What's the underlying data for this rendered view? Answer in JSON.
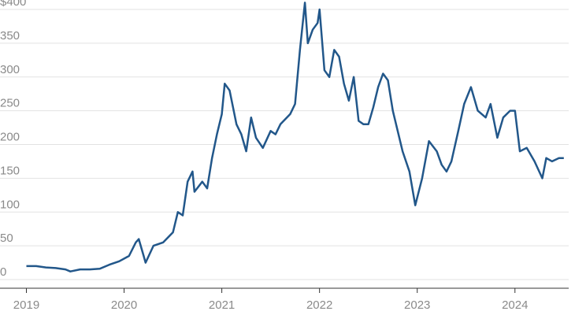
{
  "chart_data": {
    "type": "line",
    "x": [
      2019.0,
      2019.1,
      2019.2,
      2019.3,
      2019.4,
      2019.45,
      2019.55,
      2019.65,
      2019.75,
      2019.85,
      2019.95,
      2020.05,
      2020.12,
      2020.15,
      2020.2,
      2020.22,
      2020.3,
      2020.4,
      2020.5,
      2020.55,
      2020.6,
      2020.65,
      2020.7,
      2020.72,
      2020.8,
      2020.85,
      2020.9,
      2020.95,
      2021.0,
      2021.03,
      2021.08,
      2021.15,
      2021.2,
      2021.25,
      2021.3,
      2021.35,
      2021.42,
      2021.5,
      2021.55,
      2021.6,
      2021.7,
      2021.75,
      2021.8,
      2021.85,
      2021.88,
      2021.93,
      2021.98,
      2022.0,
      2022.05,
      2022.1,
      2022.15,
      2022.2,
      2022.25,
      2022.3,
      2022.35,
      2022.4,
      2022.45,
      2022.5,
      2022.55,
      2022.6,
      2022.65,
      2022.7,
      2022.75,
      2022.8,
      2022.85,
      2022.92,
      2022.98,
      2023.05,
      2023.12,
      2023.2,
      2023.25,
      2023.3,
      2023.35,
      2023.42,
      2023.48,
      2023.55,
      2023.62,
      2023.7,
      2023.75,
      2023.82,
      2023.88,
      2023.95,
      2024.0,
      2024.05,
      2024.12,
      2024.2,
      2024.28,
      2024.32,
      2024.38,
      2024.45,
      2024.5
    ],
    "series": [
      {
        "color": "#22578a",
        "values": [
          20,
          20,
          18,
          17,
          15,
          12,
          15,
          15,
          16,
          22,
          27,
          35,
          55,
          60,
          35,
          25,
          50,
          55,
          70,
          100,
          95,
          145,
          160,
          130,
          145,
          135,
          180,
          215,
          245,
          290,
          280,
          230,
          215,
          190,
          240,
          210,
          195,
          220,
          215,
          230,
          245,
          260,
          340,
          410,
          350,
          370,
          380,
          400,
          310,
          300,
          340,
          330,
          290,
          265,
          300,
          235,
          230,
          230,
          255,
          285,
          305,
          295,
          250,
          220,
          190,
          160,
          110,
          150,
          205,
          190,
          170,
          160,
          175,
          220,
          260,
          285,
          250,
          240,
          260,
          210,
          240,
          250,
          250,
          190,
          195,
          175,
          150,
          180,
          175,
          180,
          180
        ]
      }
    ],
    "xlim": [
      2018.73,
      2024.55
    ],
    "xticks": [
      2019,
      2020,
      2021,
      2022,
      2023,
      2024
    ],
    "ylim": [
      0,
      400
    ],
    "yticks": [
      0,
      50,
      100,
      150,
      200,
      250,
      300,
      350,
      {
        "value": 400,
        "label": "$400"
      }
    ],
    "grid": true
  }
}
